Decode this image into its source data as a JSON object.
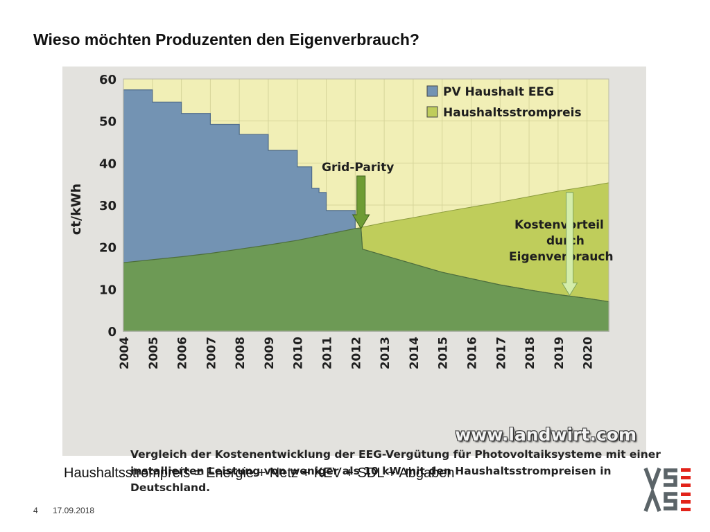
{
  "slide": {
    "title": "Wieso möchten Produzenten den Eigenverbrauch?",
    "formula": "Haushaltsstrompreis = Energie + Netz + KEV + SDL + Abgaben",
    "page_number": "4",
    "date": "17.09.2018",
    "logo_text": "VSE AES",
    "colors": {
      "logo_grey": "#5b6468",
      "logo_red": "#e2231a"
    }
  },
  "chart_data": {
    "type": "area",
    "title": "",
    "xlabel": "",
    "ylabel": "ct/kWh",
    "x": [
      2004,
      2005,
      2006,
      2007,
      2008,
      2009,
      2010,
      2011,
      2012,
      2013,
      2014,
      2015,
      2016,
      2017,
      2018,
      2019,
      2020
    ],
    "xlim": [
      2004,
      2020.75
    ],
    "ylim": [
      0,
      60
    ],
    "y_ticks": [
      0,
      10,
      20,
      30,
      40,
      50,
      60
    ],
    "grid": true,
    "legend_position": "top-right",
    "series": [
      {
        "name": "PV Haushalt EEG",
        "color": "#7393b3",
        "points": [
          [
            2004,
            57.4
          ],
          [
            2005,
            57.4
          ],
          [
            2005,
            54.5
          ],
          [
            2006,
            54.5
          ],
          [
            2006,
            51.8
          ],
          [
            2007,
            51.8
          ],
          [
            2007,
            49.2
          ],
          [
            2008,
            49.2
          ],
          [
            2008,
            46.8
          ],
          [
            2009,
            46.8
          ],
          [
            2009,
            43.0
          ],
          [
            2010,
            43.0
          ],
          [
            2010,
            39.1
          ],
          [
            2010.5,
            39.1
          ],
          [
            2010.5,
            34.0
          ],
          [
            2010.75,
            34.0
          ],
          [
            2010.75,
            33.0
          ],
          [
            2011,
            33.0
          ],
          [
            2011,
            28.7
          ],
          [
            2012,
            28.7
          ],
          [
            2012,
            24.4
          ],
          [
            2012.2,
            24.4
          ],
          [
            2012.25,
            19.5
          ],
          [
            2013,
            18.0
          ],
          [
            2014,
            16.0
          ],
          [
            2015,
            14.0
          ],
          [
            2016,
            12.5
          ],
          [
            2017,
            11.0
          ],
          [
            2018,
            9.8
          ],
          [
            2019,
            8.7
          ],
          [
            2020,
            7.8
          ],
          [
            2020.75,
            7.0
          ]
        ]
      },
      {
        "name": "Haushaltsstrompreis",
        "color": "#bfcd5b",
        "points": [
          [
            2004,
            16.3
          ],
          [
            2005,
            17.0
          ],
          [
            2006,
            17.7
          ],
          [
            2007,
            18.5
          ],
          [
            2008,
            19.5
          ],
          [
            2009,
            20.5
          ],
          [
            2010,
            21.6
          ],
          [
            2011,
            23.0
          ],
          [
            2012,
            24.4
          ],
          [
            2013,
            25.8
          ],
          [
            2014,
            27.0
          ],
          [
            2015,
            28.3
          ],
          [
            2016,
            29.5
          ],
          [
            2017,
            30.7
          ],
          [
            2018,
            32.0
          ],
          [
            2019,
            33.3
          ],
          [
            2020,
            34.4
          ],
          [
            2020.75,
            35.3
          ]
        ]
      }
    ],
    "annotations": [
      {
        "text": "Grid-Parity",
        "x": 2012.2,
        "y": 24.4
      },
      {
        "lines": [
          "Kostenvorteil",
          "durch",
          "Eigenverbrauch"
        ],
        "x": 2019.4,
        "from_y": 33.0,
        "to_y": 8.5
      }
    ],
    "caption": "Vergleich der Kostenentwicklung der EEG-Vergütung für Photovoltaiksysteme mit einer installierten Leistung von weniger als 10 kW mit den Haushaltsstrompreisen in Deutschland.",
    "watermark": "www.landwirt.com",
    "colors": {
      "blue": "#7393b3",
      "green_dark": "#6d9a55",
      "green_light": "#bfcd5b",
      "plot_bg": "#f1efb6",
      "arrow_dark": "#6e9c34",
      "arrow_light": "#d4edaa"
    }
  }
}
